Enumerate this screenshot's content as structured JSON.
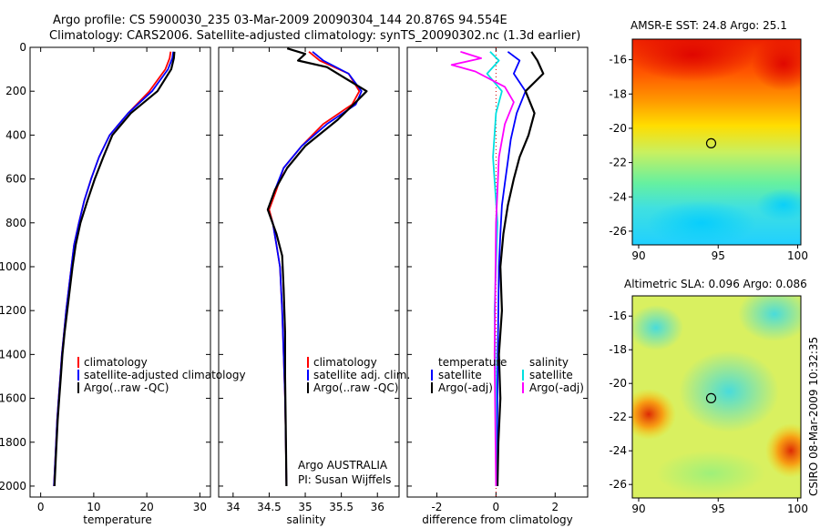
{
  "header": {
    "line1": "Argo profile: CS 5900030_235 03-Mar-2009 20090304_144 20.876S 94.554E",
    "line2": "Climatology: CARS2006. Satellite-adjusted climatology: synTS_20090302.nc (1.3d earlier)"
  },
  "colors": {
    "climatology": "#ff0000",
    "satellite": "#0000ff",
    "argo": "#000000",
    "salinity_satellite": "#00e0e0",
    "salinity_argo": "#ff00ff"
  },
  "chart_data": [
    {
      "type": "line",
      "xlabel": "temperature",
      "ylabel": "",
      "xlim": [
        -2,
        32
      ],
      "ylim": [
        2050,
        0
      ],
      "xticks": [
        0,
        10,
        20,
        30
      ],
      "yticks": [
        0,
        200,
        400,
        600,
        800,
        1000,
        1200,
        1400,
        1600,
        1800,
        2000
      ],
      "legend": [
        "climatology",
        "satellite-adjusted climatology",
        "Argo(..raw -QC)"
      ],
      "series": [
        {
          "name": "climatology",
          "color": "#ff0000",
          "width": 1.8,
          "x": [
            24.5,
            24.3,
            23.5,
            20.5,
            16.5,
            13.0,
            11.0,
            9.5,
            8.2,
            7.2,
            6.3,
            5.8,
            5.3,
            4.8,
            4.4,
            4.0,
            3.7,
            3.4,
            3.1,
            2.8,
            2.5
          ],
          "y": [
            20,
            50,
            100,
            200,
            300,
            400,
            500,
            600,
            700,
            800,
            900,
            1000,
            1100,
            1200,
            1300,
            1400,
            1500,
            1600,
            1700,
            1850,
            2000
          ]
        },
        {
          "name": "satellite-adjusted climatology",
          "color": "#0000ff",
          "width": 1.8,
          "x": [
            25.0,
            24.8,
            24.0,
            21.0,
            16.5,
            13.0,
            11.0,
            9.5,
            8.2,
            7.2,
            6.3,
            5.8,
            5.3,
            4.8,
            4.4,
            4.0,
            3.7,
            3.4,
            3.1,
            2.8,
            2.5
          ],
          "y": [
            20,
            50,
            100,
            200,
            300,
            400,
            500,
            600,
            700,
            800,
            900,
            1000,
            1100,
            1200,
            1300,
            1400,
            1500,
            1600,
            1700,
            1850,
            2000
          ]
        },
        {
          "name": "Argo(..raw -QC)",
          "color": "#000000",
          "width": 2.2,
          "x": [
            25.2,
            25.1,
            24.6,
            22.0,
            17.0,
            13.5,
            11.8,
            10.2,
            8.8,
            7.5,
            6.6,
            6.0,
            5.5,
            5.0,
            4.5,
            4.1,
            3.8,
            3.5,
            3.2,
            2.9,
            2.6
          ],
          "y": [
            20,
            50,
            100,
            200,
            300,
            400,
            500,
            600,
            700,
            800,
            900,
            1000,
            1100,
            1200,
            1300,
            1400,
            1500,
            1600,
            1700,
            1850,
            2000
          ]
        }
      ]
    },
    {
      "type": "line",
      "xlabel": "salinity",
      "ylabel": "",
      "xlim": [
        33.8,
        36.3
      ],
      "ylim": [
        2050,
        0
      ],
      "xticks": [
        34,
        34.5,
        35,
        35.5,
        36
      ],
      "legend": [
        "climatology",
        "satellite adj. clim.",
        "Argo(..raw -QC)"
      ],
      "annotations": [
        "Argo AUSTRALIA",
        "PI: Susan Wijffels"
      ],
      "series": [
        {
          "name": "climatology",
          "color": "#ff0000",
          "width": 1.8,
          "x": [
            35.05,
            35.2,
            35.6,
            35.75,
            35.65,
            35.25,
            34.95,
            34.7,
            34.6,
            34.5,
            34.55,
            34.6,
            34.65,
            34.68,
            34.7,
            34.72,
            34.73,
            34.74
          ],
          "y": [
            20,
            60,
            120,
            200,
            260,
            350,
            450,
            550,
            650,
            740,
            800,
            900,
            1000,
            1200,
            1400,
            1600,
            1800,
            2000
          ]
        },
        {
          "name": "satellite adj. clim.",
          "color": "#0000ff",
          "width": 1.8,
          "x": [
            35.1,
            35.25,
            35.6,
            35.78,
            35.7,
            35.3,
            34.95,
            34.7,
            34.58,
            34.48,
            34.55,
            34.6,
            34.65,
            34.68,
            34.7,
            34.72,
            34.73,
            34.74
          ],
          "y": [
            20,
            60,
            120,
            200,
            260,
            350,
            450,
            550,
            650,
            740,
            800,
            900,
            1000,
            1200,
            1400,
            1600,
            1800,
            2000
          ]
        },
        {
          "name": "Argo(..raw -QC)",
          "color": "#000000",
          "width": 2.2,
          "x": [
            34.75,
            35.0,
            34.9,
            35.3,
            35.5,
            35.85,
            35.7,
            35.45,
            35.0,
            34.75,
            34.58,
            34.48,
            34.6,
            34.68,
            34.7,
            34.72,
            34.72,
            34.73,
            34.74
          ],
          "y": [
            5,
            30,
            60,
            90,
            130,
            200,
            250,
            330,
            450,
            550,
            650,
            740,
            850,
            950,
            1100,
            1300,
            1500,
            1750,
            2000
          ]
        }
      ]
    },
    {
      "type": "line",
      "xlabel": "difference from climatology",
      "ylabel": "",
      "xlim": [
        -3,
        3.1
      ],
      "ylim": [
        2050,
        0
      ],
      "xticks": [
        -2,
        0,
        2
      ],
      "legend": [
        "temperature",
        "satellite",
        "Argo(-adj)",
        "salinity",
        "satellite",
        "Argo(-adj)"
      ],
      "series": [
        {
          "name": "temperature satellite",
          "color": "#0000ff",
          "width": 1.8,
          "x": [
            0.4,
            0.8,
            0.6,
            1.0,
            0.7,
            0.5,
            0.4,
            0.3,
            0.2,
            0.15,
            0.1,
            0.08,
            0.06,
            0.05,
            0.04,
            0.03
          ],
          "y": [
            20,
            60,
            120,
            200,
            300,
            420,
            520,
            620,
            720,
            850,
            1000,
            1200,
            1400,
            1600,
            1800,
            2000
          ]
        },
        {
          "name": "temperature Argo(-adj)",
          "color": "#000000",
          "width": 2.2,
          "x": [
            1.2,
            1.4,
            1.6,
            1.0,
            1.3,
            1.1,
            0.8,
            0.6,
            0.4,
            0.25,
            0.15,
            0.2,
            0.1,
            0.15,
            0.08,
            0.05
          ],
          "y": [
            20,
            60,
            120,
            200,
            300,
            400,
            500,
            600,
            720,
            850,
            1000,
            1200,
            1400,
            1600,
            1800,
            2000
          ]
        },
        {
          "name": "salinity satellite",
          "color": "#00e0e0",
          "width": 1.8,
          "x": [
            -0.2,
            0.1,
            -0.3,
            0.2,
            0.0,
            -0.1,
            0.05,
            -0.05,
            0.0,
            0.0
          ],
          "y": [
            20,
            60,
            120,
            200,
            300,
            500,
            800,
            1200,
            1600,
            2000
          ]
        },
        {
          "name": "salinity Argo(-adj)",
          "color": "#ff00ff",
          "width": 1.8,
          "x": [
            -1.2,
            -0.5,
            -1.5,
            -0.7,
            0.3,
            0.6,
            0.3,
            0.1,
            0.0,
            -0.05,
            0.0
          ],
          "y": [
            20,
            50,
            80,
            110,
            180,
            250,
            350,
            500,
            800,
            1400,
            2000
          ]
        }
      ]
    },
    {
      "type": "heatmap",
      "title": "AMSR-E SST: 24.8 Argo: 25.1",
      "xlim": [
        89.6,
        100.2
      ],
      "ylim": [
        -26.8,
        -14.8
      ],
      "xticks": [
        90,
        95,
        100
      ],
      "yticks": [
        -16,
        -18,
        -20,
        -22,
        -24,
        -26
      ],
      "marker": {
        "lon": 94.554,
        "lat": -20.876
      }
    },
    {
      "type": "heatmap",
      "title": "Altimetric SLA: 0.096 Argo: 0.086",
      "xlim": [
        89.6,
        100.2
      ],
      "ylim": [
        -26.8,
        -14.8
      ],
      "xticks": [
        90,
        95,
        100
      ],
      "yticks": [
        -16,
        -18,
        -20,
        -22,
        -24,
        -26
      ],
      "marker": {
        "lon": 94.554,
        "lat": -20.876
      },
      "side_note": "CSIRO 08-Mar-2009 10:32:35"
    }
  ]
}
